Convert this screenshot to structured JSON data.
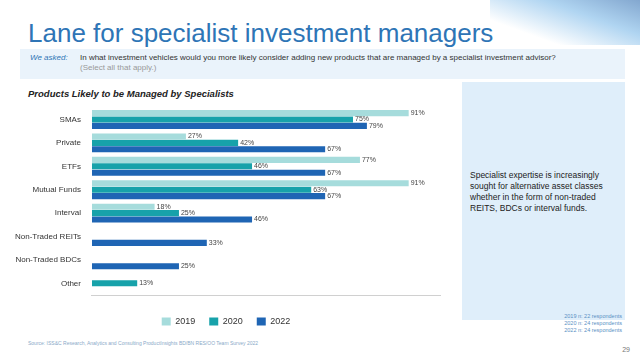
{
  "header": {
    "title": "Lane for specialist investment managers",
    "asked_label": "We asked:",
    "question": "In what investment vehicles would you more likely consider adding new products that are managed by a specialist investment advisor?",
    "instruction": "(Select all that apply.)"
  },
  "chart_data": {
    "type": "bar",
    "orientation": "horizontal",
    "title": "Products Likely to be Managed by Specialists",
    "categories": [
      "SMAs",
      "Private",
      "ETFs",
      "Mutual Funds",
      "Interval",
      "Non-Traded REITs",
      "Non-Traded BDCs",
      "Other"
    ],
    "series": [
      {
        "name": "2019",
        "color": "#a6dcdc",
        "values": [
          91,
          27,
          77,
          91,
          18,
          null,
          null,
          null
        ],
        "value_labels": [
          "91%",
          "27%",
          "77%",
          "91%",
          "18%",
          null,
          null,
          null
        ]
      },
      {
        "name": "2020",
        "color": "#17a2aa",
        "values": [
          75,
          42,
          46,
          63,
          25,
          null,
          null,
          13
        ],
        "value_labels": [
          "75%",
          "42%",
          "46%",
          "63%",
          "25%",
          null,
          null,
          "13%"
        ]
      },
      {
        "name": "2022",
        "color": "#1f65b4",
        "values": [
          79,
          67,
          67,
          67,
          46,
          33,
          25,
          null
        ],
        "value_labels": [
          "79%",
          "67%",
          "67%",
          "67%",
          "46%",
          "33%",
          "25%",
          null
        ]
      }
    ],
    "xlim": [
      0,
      100
    ],
    "tick_labels": "y",
    "grid": false,
    "legend": "bottom",
    "data_labels": true
  },
  "sidebar": {
    "text": "Specialist expertise is increasingly sought for alternative asset classes whether in the form of non-traded REITS, BDCs or interval funds."
  },
  "notes": [
    "2019 n: 22 respondents",
    "2020 n: 24 respondents",
    "2022 n: 24 respondents"
  ],
  "source": "Source: ISS&C Research, Analytics and Consulting ProductInsights BD/BN RES/OO Team Survey 2022",
  "page_number": "29"
}
